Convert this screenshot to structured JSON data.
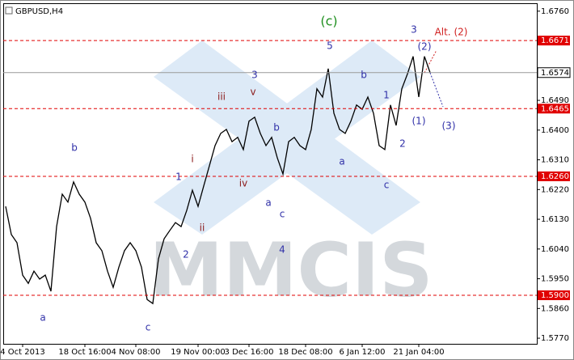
{
  "chart_data": {
    "type": "line",
    "title": "GBPUSD,H4",
    "watermark": "MMCIS",
    "color": "#000000",
    "categories": [
      null,
      null,
      null,
      "4 Oct 2013",
      null,
      null,
      null,
      null,
      null,
      null,
      null,
      null,
      null,
      null,
      "18 Oct 16:00",
      null,
      null,
      null,
      null,
      null,
      null,
      null,
      null,
      "4 Nov 08:00",
      null,
      null,
      null,
      null,
      null,
      null,
      null,
      null,
      null,
      null,
      "19 Nov 00:00",
      null,
      null,
      null,
      null,
      null,
      null,
      null,
      null,
      "3 Dec 16:00",
      null,
      null,
      null,
      null,
      null,
      null,
      null,
      null,
      null,
      "18 Dec 08:00",
      null,
      null,
      null,
      null,
      null,
      null,
      null,
      null,
      null,
      "6 Jan 12:00",
      null,
      null,
      null,
      null,
      null,
      null,
      null,
      null,
      null,
      "21 Jan 04:00",
      null,
      null
    ],
    "values": [
      1.6169,
      1.6084,
      1.6059,
      1.5961,
      1.5936,
      1.5973,
      1.5949,
      1.5961,
      1.5912,
      1.6108,
      1.6206,
      1.6182,
      1.6243,
      1.6206,
      1.6182,
      1.6133,
      1.6059,
      1.6035,
      1.5973,
      1.5924,
      1.5985,
      1.6035,
      1.6059,
      1.6035,
      1.5985,
      1.5887,
      1.5875,
      1.601,
      1.6071,
      1.6096,
      1.612,
      1.6108,
      1.6157,
      1.6218,
      1.6169,
      1.6231,
      1.6292,
      1.6353,
      1.639,
      1.6402,
      1.6365,
      1.6378,
      1.6341,
      1.6427,
      1.6439,
      1.639,
      1.6353,
      1.6378,
      1.6316,
      1.6267,
      1.6365,
      1.6378,
      1.6353,
      1.6341,
      1.6402,
      1.6525,
      1.65,
      1.6586,
      1.6451,
      1.6402,
      1.639,
      1.6427,
      1.6476,
      1.6463,
      1.65,
      1.6451,
      1.6353,
      1.6341,
      1.6476,
      1.6414,
      1.6525,
      1.657,
      1.6623,
      1.65,
      1.6623,
      1.6574
    ],
    "ylim": [
      1.5753,
      1.6784
    ],
    "yticks": [
      {
        "value": 1.676,
        "label": "1.6760"
      },
      {
        "value": 1.649,
        "label": "1.6490"
      },
      {
        "value": 1.64,
        "label": "1.6400"
      },
      {
        "value": 1.631,
        "label": "1.6310"
      },
      {
        "value": 1.622,
        "label": "1.6220"
      },
      {
        "value": 1.613,
        "label": "1.6130"
      },
      {
        "value": 1.604,
        "label": "1.6040"
      },
      {
        "value": 1.595,
        "label": "1.5950"
      },
      {
        "value": 1.586,
        "label": "1.5860"
      },
      {
        "value": 1.577,
        "label": "1.5770"
      }
    ],
    "levels": [
      {
        "value": 1.6671,
        "label": "1.6671"
      },
      {
        "value": 1.6465,
        "label": "1.6465"
      },
      {
        "value": 1.626,
        "label": "1.6260"
      },
      {
        "value": 1.59,
        "label": "1.5900"
      }
    ],
    "level_color": "#e00000",
    "current_price": {
      "value": 1.6574,
      "label": "1.6574"
    },
    "annotations": [
      {
        "text": "(c)",
        "color": "#1f8f1f"
      },
      {
        "text": "5",
        "color": "#3030a8"
      },
      {
        "text": "3",
        "color": "#3030a8"
      },
      {
        "text": "Alt. (2)",
        "color": "#d02020"
      },
      {
        "text": "(2)",
        "color": "#3030a8"
      },
      {
        "text": "b",
        "color": "#3030a8"
      },
      {
        "text": "1",
        "color": "#3030a8"
      },
      {
        "text": "(1)",
        "color": "#3030a8"
      },
      {
        "text": "(3)",
        "color": "#3030a8"
      },
      {
        "text": "2",
        "color": "#3030a8"
      },
      {
        "text": "a",
        "color": "#3030a8"
      },
      {
        "text": "c",
        "color": "#3030a8"
      },
      {
        "text": "3",
        "color": "#3030a8"
      },
      {
        "text": "v",
        "color": "#8b1a1a"
      },
      {
        "text": "iii",
        "color": "#8b1a1a"
      },
      {
        "text": "b",
        "color": "#3030a8"
      },
      {
        "text": "i",
        "color": "#8b1a1a"
      },
      {
        "text": "1",
        "color": "#3030a8"
      },
      {
        "text": "iv",
        "color": "#8b1a1a"
      },
      {
        "text": "a",
        "color": "#3030a8"
      },
      {
        "text": "c",
        "color": "#3030a8"
      },
      {
        "text": "ii",
        "color": "#8b1a1a"
      },
      {
        "text": "2",
        "color": "#3030a8"
      },
      {
        "text": "4",
        "color": "#3030a8"
      },
      {
        "text": "b",
        "color": "#3030a8"
      },
      {
        "text": "a",
        "color": "#3030a8"
      },
      {
        "text": "c",
        "color": "#3030a8"
      }
    ]
  }
}
